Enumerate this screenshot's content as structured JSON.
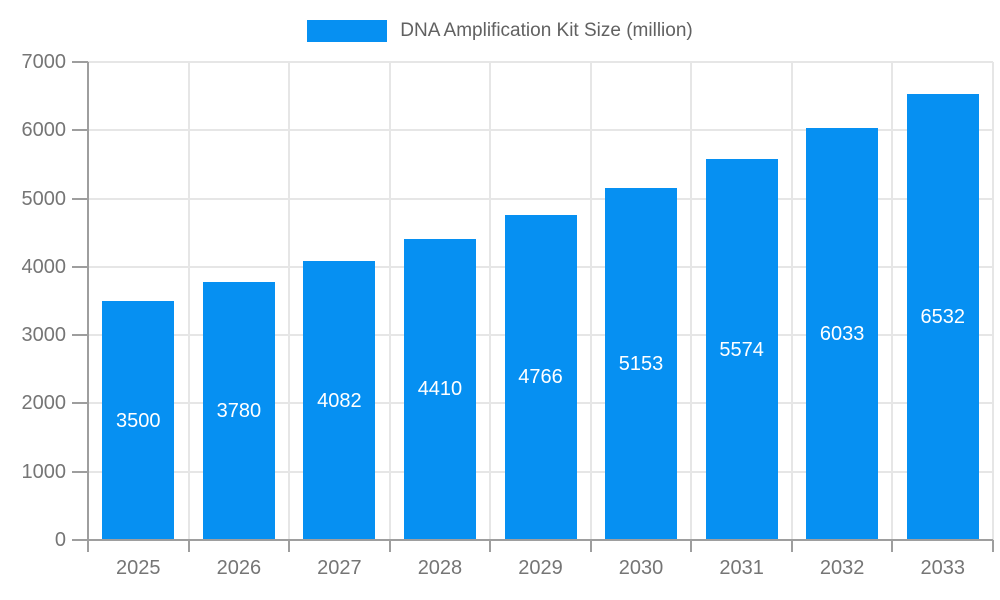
{
  "chart_data": {
    "type": "bar",
    "title": "DNA Amplification Kit Size (million)",
    "xlabel": "",
    "ylabel": "",
    "categories": [
      "2025",
      "2026",
      "2027",
      "2028",
      "2029",
      "2030",
      "2031",
      "2032",
      "2033"
    ],
    "series": [
      {
        "name": "DNA Amplification Kit Size (million)",
        "values": [
          3500,
          3780,
          4082,
          4410,
          4766,
          5153,
          5574,
          6033,
          6532
        ]
      }
    ],
    "value_labels_shown": true,
    "ylim": [
      0,
      7000
    ],
    "y_ticks": [
      0,
      1000,
      2000,
      3000,
      4000,
      5000,
      6000,
      7000
    ],
    "grid": true,
    "legend_position": "top-center",
    "colors": {
      "bar": "#0690f2",
      "gridline": "#e6e6e6",
      "axis": "#9e9e9e",
      "tick_label": "#757575",
      "legend_label": "#616161",
      "value_label": "#ffffff",
      "background": "#ffffff"
    }
  }
}
